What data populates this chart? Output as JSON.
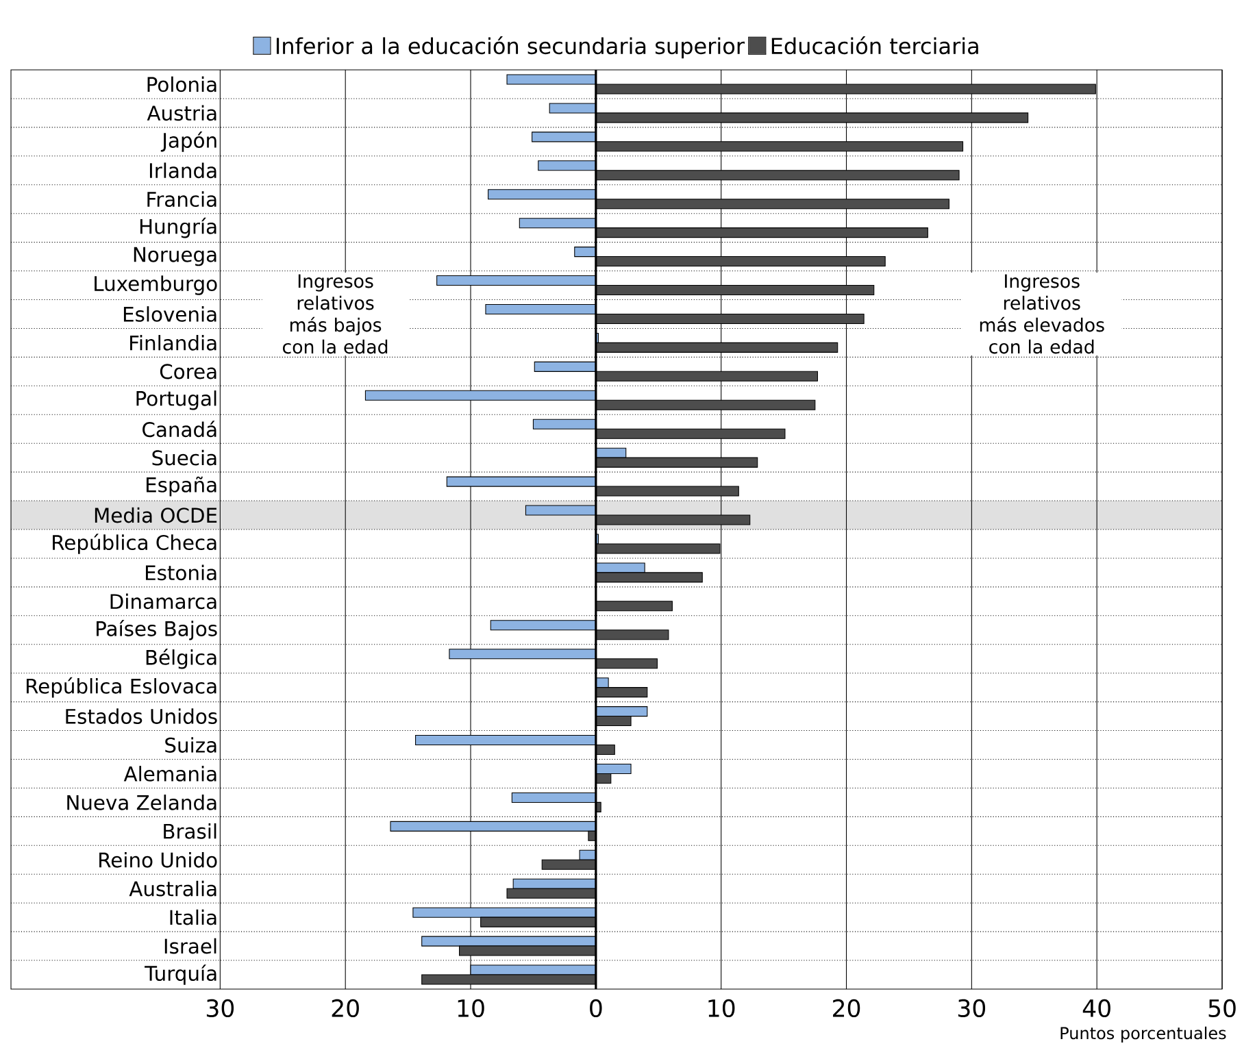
{
  "chart_data": {
    "type": "bar",
    "orientation": "horizontal",
    "legend": "top",
    "grid": true,
    "xlabel": "Puntos porcentuales",
    "categories": [
      "Polonia",
      "Austria",
      "Japón",
      "Irlanda",
      "Francia",
      "Hungría",
      "Noruega",
      "Luxemburgo",
      "Eslovenia",
      "Finlandia",
      "Corea",
      "Portugal",
      "Canadá",
      "Suecia",
      "España",
      "Media OCDE",
      "República Checa",
      "Estonia",
      "Dinamarca",
      "Países Bajos",
      "Bélgica",
      "República Eslovaca",
      "Estados Unidos",
      "Suiza",
      "Alemania",
      "Nueva Zelanda",
      "Brasil",
      "Reino Unido",
      "Australia",
      "Italia",
      "Israel",
      "Turquía"
    ],
    "series": [
      {
        "name": "Inferior a la educación secundaria superior",
        "color": "#8db3e2",
        "values": [
          -7.1,
          -3.7,
          -5.1,
          -4.6,
          -8.6,
          -6.1,
          -1.7,
          -12.7,
          -8.8,
          0.2,
          -4.9,
          -18.4,
          -5.0,
          2.4,
          -11.9,
          -5.6,
          0.2,
          3.9,
          null,
          -8.4,
          -11.7,
          1.0,
          4.1,
          -14.4,
          2.8,
          -6.7,
          -16.4,
          -1.3,
          -6.6,
          -14.6,
          -13.9,
          -10.0
        ]
      },
      {
        "name": "Educación terciaria",
        "color": "#4d4d4d",
        "values": [
          39.9,
          34.5,
          29.3,
          29.0,
          28.2,
          26.5,
          23.1,
          22.2,
          21.4,
          19.3,
          17.7,
          17.5,
          15.1,
          12.9,
          11.4,
          12.3,
          9.9,
          8.5,
          6.1,
          5.8,
          4.9,
          4.1,
          2.8,
          1.5,
          1.2,
          0.4,
          -0.6,
          -4.3,
          -7.1,
          -9.2,
          -10.9,
          -13.9
        ]
      }
    ],
    "xlim": [
      -46.7,
      50
    ],
    "xticks": [
      {
        "value": -30,
        "label": "30"
      },
      {
        "value": -20,
        "label": "20"
      },
      {
        "value": -10,
        "label": "10"
      },
      0,
      10,
      20,
      30,
      40,
      50
    ],
    "bands": [
      {
        "axis": "y",
        "from": "Media OCDE",
        "to": "Media OCDE",
        "color": "#e0e0e0"
      }
    ],
    "annotations": [
      "Ingresos relativos más bajos con la edad",
      "Ingresos relativos más elevados con la edad"
    ]
  }
}
